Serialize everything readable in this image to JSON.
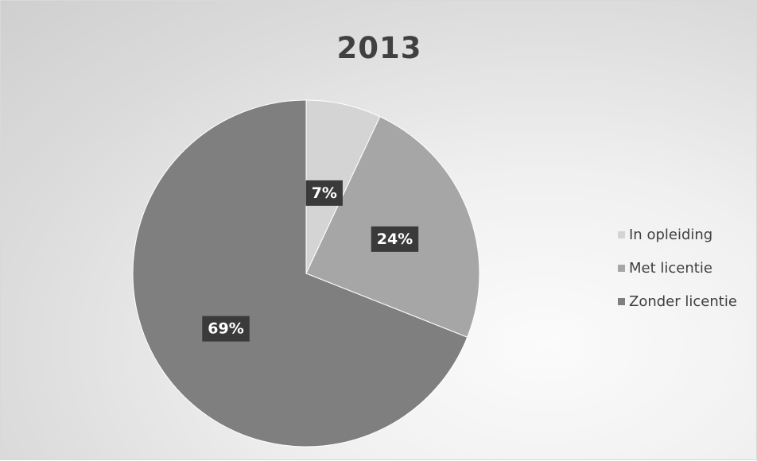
{
  "chart_data": {
    "type": "pie",
    "title": "2013",
    "categories": [
      "In opleiding",
      "Met licentie",
      "Zonder licentie"
    ],
    "values": [
      7,
      24,
      69
    ],
    "labels": [
      "7%",
      "24%",
      "69%"
    ],
    "colors": [
      "#d4d4d4",
      "#a6a6a6",
      "#7f7f7f"
    ],
    "label_box_color": "#3a3a3a",
    "legend_position": "right"
  }
}
